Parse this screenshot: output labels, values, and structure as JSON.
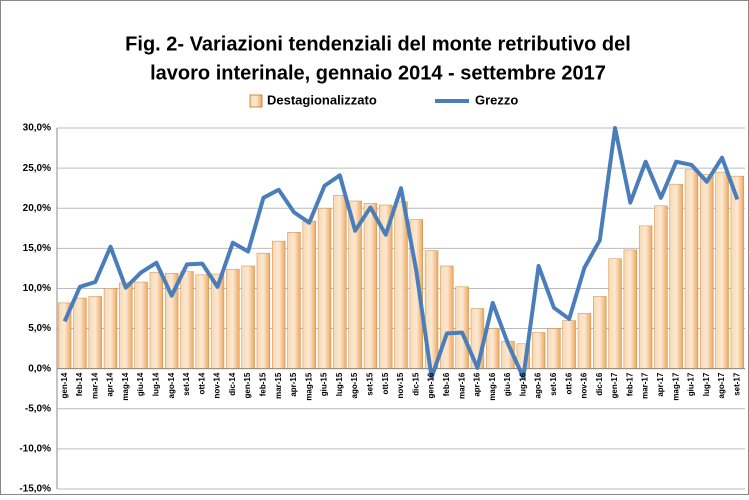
{
  "chart_data": {
    "type": "bar_line",
    "title": [
      "Fig. 2- Variazioni tendenziali del monte retributivo del",
      "lavoro interinale, gennaio 2014 - settembre 2017"
    ],
    "categories": [
      "gen-14",
      "feb-14",
      "mar-14",
      "apr-14",
      "mag-14",
      "giu-14",
      "lug-14",
      "ago-14",
      "set-14",
      "ott-14",
      "nov-14",
      "dic-14",
      "gen-15",
      "feb-15",
      "mar-15",
      "apr-15",
      "mag-15",
      "giu-15",
      "lug-15",
      "ago-15",
      "set-15",
      "ott-15",
      "nov-15",
      "dic-15",
      "gen-16",
      "feb-16",
      "mar-16",
      "apr-16",
      "mag-16",
      "giu-16",
      "lug-16",
      "ago-16",
      "set-16",
      "ott-16",
      "nov-16",
      "dic-16",
      "gen-17",
      "feb-17",
      "mar-17",
      "apr-17",
      "mag-17",
      "giu-17",
      "lug-17",
      "ago-17",
      "set-17"
    ],
    "series": [
      {
        "name": "Destagionalizzato",
        "type": "bar",
        "color": "#f0a860",
        "values": [
          8.2,
          8.8,
          9.0,
          10.0,
          10.7,
          10.8,
          12.0,
          11.9,
          12.1,
          11.7,
          11.8,
          12.4,
          12.8,
          14.4,
          15.9,
          17.0,
          18.4,
          20.0,
          21.6,
          20.9,
          20.6,
          20.4,
          20.8,
          18.6,
          14.7,
          12.8,
          10.2,
          7.5,
          5.0,
          3.4,
          3.1,
          4.5,
          5.0,
          6.0,
          6.9,
          9.0,
          13.7,
          14.8,
          17.8,
          20.3,
          23.0,
          24.8,
          24.2,
          24.5,
          24.0
        ]
      },
      {
        "name": "Grezzo",
        "type": "line",
        "color": "#4a7ebb",
        "values": [
          5.9,
          10.2,
          10.8,
          15.2,
          10.1,
          12.0,
          13.2,
          9.1,
          13.0,
          13.1,
          10.2,
          15.7,
          14.6,
          21.3,
          22.3,
          19.5,
          18.2,
          22.8,
          24.1,
          17.2,
          20.1,
          16.7,
          22.5,
          12.2,
          -1.1,
          4.4,
          4.5,
          0.1,
          8.2,
          3.1,
          -1.1,
          12.8,
          7.6,
          6.2,
          12.6,
          16.0,
          30.0,
          20.7,
          25.8,
          21.3,
          25.8,
          25.4,
          23.3,
          26.3,
          21.1
        ]
      }
    ],
    "ylim": [
      -15,
      30
    ],
    "yticks": [
      {
        "value": -15,
        "label": "-15,0%"
      },
      {
        "value": -10,
        "label": "-10,0%"
      },
      {
        "value": -5,
        "label": "-5,0%"
      },
      {
        "value": 0,
        "label": "0,0%"
      },
      {
        "value": 5,
        "label": "5,0%"
      },
      {
        "value": 10,
        "label": "10,0%"
      },
      {
        "value": 15,
        "label": "15,0%"
      },
      {
        "value": 20,
        "label": "20,0%"
      },
      {
        "value": 25,
        "label": "25,0%"
      },
      {
        "value": 30,
        "label": "30,0%"
      }
    ],
    "grid": true,
    "legend": "top"
  }
}
